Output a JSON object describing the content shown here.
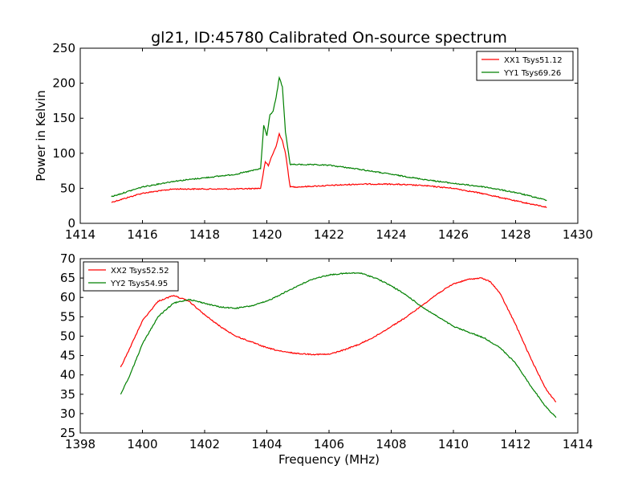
{
  "figure": {
    "title": "gl21, ID:45780 Calibrated On-source spectrum"
  },
  "chart_data": [
    {
      "type": "line",
      "title": "gl21, ID:45780 Calibrated On-source spectrum",
      "xlabel": "",
      "ylabel": "Power in Kelvin",
      "xlim": [
        1414,
        1430
      ],
      "ylim": [
        0,
        250
      ],
      "xticks": [
        1414,
        1416,
        1418,
        1420,
        1422,
        1424,
        1426,
        1428,
        1430
      ],
      "yticks": [
        0,
        50,
        100,
        150,
        200,
        250
      ],
      "grid": false,
      "legend_position": "top-right",
      "series": [
        {
          "name": "XX1 Tsys51.12",
          "color": "#ff0000",
          "x": [
            1415.0,
            1416.0,
            1417.0,
            1418.0,
            1419.0,
            1419.8,
            1419.95,
            1420.05,
            1420.15,
            1420.3,
            1420.4,
            1420.5,
            1420.6,
            1420.75,
            1421.0,
            1422.0,
            1423.0,
            1424.0,
            1425.0,
            1426.0,
            1427.0,
            1428.0,
            1429.0
          ],
          "values": [
            30,
            43,
            49,
            49,
            49,
            50,
            88,
            82,
            95,
            110,
            128,
            118,
            100,
            52,
            52,
            54,
            56,
            56,
            54,
            50,
            42,
            32,
            23
          ]
        },
        {
          "name": "YY1 Tsys69.26",
          "color": "#008000",
          "x": [
            1415.0,
            1416.0,
            1417.0,
            1418.0,
            1419.0,
            1419.8,
            1419.9,
            1420.0,
            1420.1,
            1420.2,
            1420.3,
            1420.4,
            1420.5,
            1420.6,
            1420.75,
            1421.0,
            1422.0,
            1423.0,
            1424.0,
            1425.0,
            1426.0,
            1427.0,
            1428.0,
            1429.0
          ],
          "values": [
            38,
            52,
            60,
            65,
            70,
            78,
            140,
            125,
            155,
            160,
            180,
            208,
            195,
            130,
            84,
            84,
            83,
            77,
            70,
            63,
            57,
            52,
            44,
            33
          ]
        }
      ]
    },
    {
      "type": "line",
      "title": "",
      "xlabel": "Frequency (MHz)",
      "ylabel": "",
      "xlim": [
        1398,
        1414
      ],
      "ylim": [
        25,
        70
      ],
      "xticks": [
        1398,
        1400,
        1402,
        1404,
        1406,
        1408,
        1410,
        1412,
        1414
      ],
      "yticks": [
        25,
        30,
        35,
        40,
        45,
        50,
        55,
        60,
        65,
        70
      ],
      "grid": false,
      "legend_position": "top-left",
      "series": [
        {
          "name": "XX2 Tsys52.52",
          "color": "#ff0000",
          "x": [
            1399.3,
            1399.6,
            1400.0,
            1400.5,
            1401.0,
            1401.5,
            1402.0,
            1402.5,
            1403.0,
            1403.5,
            1404.0,
            1404.5,
            1405.0,
            1405.5,
            1406.0,
            1406.5,
            1407.0,
            1407.5,
            1408.0,
            1408.5,
            1409.0,
            1409.5,
            1410.0,
            1410.5,
            1410.9,
            1411.2,
            1411.5,
            1412.0,
            1412.5,
            1413.0,
            1413.3
          ],
          "values": [
            42,
            47,
            54,
            59,
            60.5,
            59,
            55.5,
            52.5,
            50,
            48.5,
            47,
            46,
            45.5,
            45.3,
            45.3,
            46.5,
            48,
            50,
            52.5,
            55,
            58,
            61,
            63.5,
            64.7,
            65,
            64,
            61,
            53,
            44,
            36,
            33
          ]
        },
        {
          "name": "YY2 Tsys54.95",
          "color": "#008000",
          "x": [
            1399.3,
            1399.6,
            1400.0,
            1400.5,
            1401.0,
            1401.5,
            1402.0,
            1402.5,
            1403.0,
            1403.5,
            1404.0,
            1404.5,
            1405.0,
            1405.5,
            1406.0,
            1406.5,
            1407.0,
            1407.5,
            1408.0,
            1408.5,
            1409.0,
            1409.5,
            1410.0,
            1410.5,
            1411.0,
            1411.5,
            1412.0,
            1412.5,
            1413.0,
            1413.3
          ],
          "values": [
            35,
            40,
            48,
            55,
            58.5,
            59.5,
            58.5,
            57.5,
            57.2,
            57.8,
            59,
            61,
            63,
            64.8,
            65.8,
            66.2,
            66.3,
            65,
            63,
            60.5,
            57.5,
            55,
            52.5,
            51,
            49.5,
            47,
            43,
            37,
            31.5,
            29
          ]
        }
      ]
    }
  ]
}
